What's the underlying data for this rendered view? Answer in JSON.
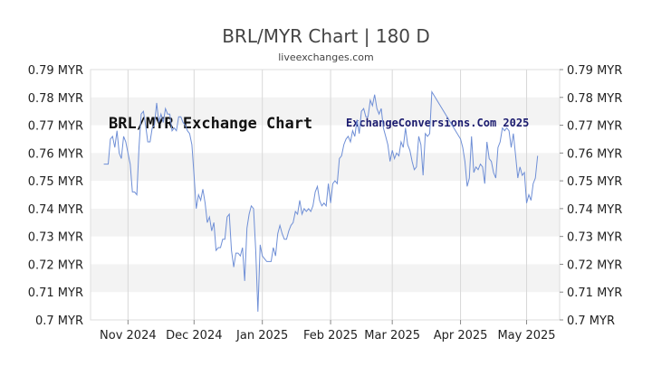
{
  "chart_data": {
    "type": "line",
    "title": "BRL/MYR Chart | 180 D",
    "subtitle": "liveexchanges.com",
    "watermark_left": "BRL/MYR Exchange Chart",
    "watermark_right": "ExchangeConversions.Com 2025",
    "ylim": [
      0.7,
      0.79
    ],
    "yticks": [
      {
        "value": 0.79,
        "label": "0.79 MYR"
      },
      {
        "value": 0.78,
        "label": "0.78 MYR"
      },
      {
        "value": 0.77,
        "label": "0.77 MYR"
      },
      {
        "value": 0.76,
        "label": "0.76 MYR"
      },
      {
        "value": 0.75,
        "label": "0.75 MYR"
      },
      {
        "value": 0.74,
        "label": "0.74 MYR"
      },
      {
        "value": 0.73,
        "label": "0.73 MYR"
      },
      {
        "value": 0.72,
        "label": "0.72 MYR"
      },
      {
        "value": 0.71,
        "label": "0.71 MYR"
      },
      {
        "value": 0.7,
        "label": "0.7 MYR"
      }
    ],
    "xlim": [
      "2024-10-15",
      "2025-05-16"
    ],
    "xticks": [
      {
        "date": "2024-11-01",
        "label": "Nov 2024"
      },
      {
        "date": "2024-12-01",
        "label": "Dec 2024"
      },
      {
        "date": "2025-01-01",
        "label": "Jan 2025"
      },
      {
        "date": "2025-02-01",
        "label": "Feb 2025"
      },
      {
        "date": "2025-03-01",
        "label": "Mar 2025"
      },
      {
        "date": "2025-04-01",
        "label": "Apr 2025"
      },
      {
        "date": "2025-05-01",
        "label": "May 2025"
      }
    ],
    "grid": "horizontal bands",
    "line_color": "#6f8fd6",
    "series": [
      {
        "points": [
          [
            "2024-10-21",
            0.756
          ],
          [
            "2024-10-22",
            0.756
          ],
          [
            "2024-10-23",
            0.756
          ],
          [
            "2024-10-24",
            0.765
          ],
          [
            "2024-10-25",
            0.766
          ],
          [
            "2024-10-26",
            0.762
          ],
          [
            "2024-10-27",
            0.768
          ],
          [
            "2024-10-28",
            0.76
          ],
          [
            "2024-10-29",
            0.758
          ],
          [
            "2024-10-30",
            0.766
          ],
          [
            "2024-10-31",
            0.764
          ],
          [
            "2024-11-01",
            0.76
          ],
          [
            "2024-11-02",
            0.756
          ],
          [
            "2024-11-03",
            0.746
          ],
          [
            "2024-11-04",
            0.746
          ],
          [
            "2024-11-05",
            0.745
          ],
          [
            "2024-11-06",
            0.762
          ],
          [
            "2024-11-07",
            0.774
          ],
          [
            "2024-11-08",
            0.775
          ],
          [
            "2024-11-09",
            0.77
          ],
          [
            "2024-11-10",
            0.764
          ],
          [
            "2024-11-11",
            0.764
          ],
          [
            "2024-11-12",
            0.769
          ],
          [
            "2024-11-13",
            0.77
          ],
          [
            "2024-11-14",
            0.778
          ],
          [
            "2024-11-15",
            0.771
          ],
          [
            "2024-11-16",
            0.774
          ],
          [
            "2024-11-17",
            0.771
          ],
          [
            "2024-11-18",
            0.776
          ],
          [
            "2024-11-19",
            0.774
          ],
          [
            "2024-11-20",
            0.774
          ],
          [
            "2024-11-21",
            0.768
          ],
          [
            "2024-11-22",
            0.769
          ],
          [
            "2024-11-23",
            0.768
          ],
          [
            "2024-11-24",
            0.773
          ],
          [
            "2024-11-25",
            0.773
          ],
          [
            "2024-11-26",
            0.771
          ],
          [
            "2024-11-27",
            0.77
          ],
          [
            "2024-11-28",
            0.768
          ],
          [
            "2024-11-29",
            0.767
          ],
          [
            "2024-11-30",
            0.763
          ],
          [
            "2024-12-01",
            0.752
          ],
          [
            "2024-12-02",
            0.74
          ],
          [
            "2024-12-03",
            0.745
          ],
          [
            "2024-12-04",
            0.743
          ],
          [
            "2024-12-05",
            0.747
          ],
          [
            "2024-12-06",
            0.742
          ],
          [
            "2024-12-07",
            0.735
          ],
          [
            "2024-12-08",
            0.737
          ],
          [
            "2024-12-09",
            0.732
          ],
          [
            "2024-12-10",
            0.735
          ],
          [
            "2024-12-11",
            0.725
          ],
          [
            "2024-12-12",
            0.726
          ],
          [
            "2024-12-13",
            0.726
          ],
          [
            "2024-12-14",
            0.729
          ],
          [
            "2024-12-15",
            0.729
          ],
          [
            "2024-12-16",
            0.737
          ],
          [
            "2024-12-17",
            0.738
          ],
          [
            "2024-12-18",
            0.725
          ],
          [
            "2024-12-19",
            0.719
          ],
          [
            "2024-12-20",
            0.724
          ],
          [
            "2024-12-21",
            0.724
          ],
          [
            "2024-12-22",
            0.723
          ],
          [
            "2024-12-23",
            0.726
          ],
          [
            "2024-12-24",
            0.714
          ],
          [
            "2024-12-25",
            0.733
          ],
          [
            "2024-12-26",
            0.738
          ],
          [
            "2024-12-27",
            0.741
          ],
          [
            "2024-12-28",
            0.74
          ],
          [
            "2024-12-29",
            0.725
          ],
          [
            "2024-12-30",
            0.703
          ],
          [
            "2024-12-31",
            0.727
          ],
          [
            "2025-01-01",
            0.723
          ],
          [
            "2025-01-02",
            0.722
          ],
          [
            "2025-01-03",
            0.721
          ],
          [
            "2025-01-04",
            0.721
          ],
          [
            "2025-01-05",
            0.721
          ],
          [
            "2025-01-06",
            0.726
          ],
          [
            "2025-01-07",
            0.723
          ],
          [
            "2025-01-08",
            0.731
          ],
          [
            "2025-01-09",
            0.734
          ],
          [
            "2025-01-10",
            0.731
          ],
          [
            "2025-01-11",
            0.729
          ],
          [
            "2025-01-12",
            0.729
          ],
          [
            "2025-01-13",
            0.732
          ],
          [
            "2025-01-14",
            0.734
          ],
          [
            "2025-01-15",
            0.735
          ],
          [
            "2025-01-16",
            0.739
          ],
          [
            "2025-01-17",
            0.738
          ],
          [
            "2025-01-18",
            0.743
          ],
          [
            "2025-01-19",
            0.738
          ],
          [
            "2025-01-20",
            0.74
          ],
          [
            "2025-01-21",
            0.739
          ],
          [
            "2025-01-22",
            0.74
          ],
          [
            "2025-01-23",
            0.739
          ],
          [
            "2025-01-24",
            0.741
          ],
          [
            "2025-01-25",
            0.746
          ],
          [
            "2025-01-26",
            0.748
          ],
          [
            "2025-01-27",
            0.743
          ],
          [
            "2025-01-28",
            0.741
          ],
          [
            "2025-01-29",
            0.742
          ],
          [
            "2025-01-30",
            0.741
          ],
          [
            "2025-01-31",
            0.749
          ],
          [
            "2025-02-01",
            0.742
          ],
          [
            "2025-02-02",
            0.749
          ],
          [
            "2025-02-03",
            0.75
          ],
          [
            "2025-02-04",
            0.749
          ],
          [
            "2025-02-05",
            0.758
          ],
          [
            "2025-02-06",
            0.759
          ],
          [
            "2025-02-07",
            0.763
          ],
          [
            "2025-02-08",
            0.765
          ],
          [
            "2025-02-09",
            0.766
          ],
          [
            "2025-02-10",
            0.764
          ],
          [
            "2025-02-11",
            0.768
          ],
          [
            "2025-02-12",
            0.766
          ],
          [
            "2025-02-13",
            0.772
          ],
          [
            "2025-02-14",
            0.767
          ],
          [
            "2025-02-15",
            0.775
          ],
          [
            "2025-02-16",
            0.776
          ],
          [
            "2025-02-17",
            0.773
          ],
          [
            "2025-02-18",
            0.773
          ],
          [
            "2025-02-19",
            0.779
          ],
          [
            "2025-02-20",
            0.777
          ],
          [
            "2025-02-21",
            0.781
          ],
          [
            "2025-02-22",
            0.776
          ],
          [
            "2025-02-23",
            0.774
          ],
          [
            "2025-02-24",
            0.776
          ],
          [
            "2025-02-25",
            0.769
          ],
          [
            "2025-02-26",
            0.766
          ],
          [
            "2025-02-27",
            0.763
          ],
          [
            "2025-02-28",
            0.757
          ],
          [
            "2025-03-01",
            0.761
          ],
          [
            "2025-03-02",
            0.758
          ],
          [
            "2025-03-03",
            0.76
          ],
          [
            "2025-03-04",
            0.759
          ],
          [
            "2025-03-05",
            0.764
          ],
          [
            "2025-03-06",
            0.762
          ],
          [
            "2025-03-07",
            0.769
          ],
          [
            "2025-03-08",
            0.763
          ],
          [
            "2025-03-09",
            0.761
          ],
          [
            "2025-03-10",
            0.757
          ],
          [
            "2025-03-11",
            0.754
          ],
          [
            "2025-03-12",
            0.755
          ],
          [
            "2025-03-13",
            0.766
          ],
          [
            "2025-03-14",
            0.763
          ],
          [
            "2025-03-15",
            0.752
          ],
          [
            "2025-03-16",
            0.767
          ],
          [
            "2025-03-17",
            0.766
          ],
          [
            "2025-03-18",
            0.767
          ],
          [
            "2025-03-19",
            0.782
          ],
          [
            "2025-04-01",
            0.765
          ],
          [
            "2025-04-02",
            0.762
          ],
          [
            "2025-04-03",
            0.757
          ],
          [
            "2025-04-04",
            0.748
          ],
          [
            "2025-04-05",
            0.751
          ],
          [
            "2025-04-06",
            0.766
          ],
          [
            "2025-04-07",
            0.753
          ],
          [
            "2025-04-08",
            0.755
          ],
          [
            "2025-04-09",
            0.754
          ],
          [
            "2025-04-10",
            0.756
          ],
          [
            "2025-04-11",
            0.755
          ],
          [
            "2025-04-12",
            0.749
          ],
          [
            "2025-04-13",
            0.764
          ],
          [
            "2025-04-14",
            0.758
          ],
          [
            "2025-04-15",
            0.757
          ],
          [
            "2025-04-16",
            0.753
          ],
          [
            "2025-04-17",
            0.751
          ],
          [
            "2025-04-18",
            0.762
          ],
          [
            "2025-04-19",
            0.764
          ],
          [
            "2025-04-20",
            0.769
          ],
          [
            "2025-04-21",
            0.768
          ],
          [
            "2025-04-22",
            0.769
          ],
          [
            "2025-04-23",
            0.768
          ],
          [
            "2025-04-24",
            0.762
          ],
          [
            "2025-04-25",
            0.767
          ],
          [
            "2025-04-26",
            0.759
          ],
          [
            "2025-04-27",
            0.751
          ],
          [
            "2025-04-28",
            0.755
          ],
          [
            "2025-04-29",
            0.752
          ],
          [
            "2025-04-30",
            0.753
          ],
          [
            "2025-05-01",
            0.742
          ],
          [
            "2025-05-02",
            0.745
          ],
          [
            "2025-05-03",
            0.743
          ],
          [
            "2025-05-04",
            0.749
          ],
          [
            "2025-05-05",
            0.751
          ],
          [
            "2025-05-06",
            0.759
          ]
        ]
      }
    ]
  }
}
